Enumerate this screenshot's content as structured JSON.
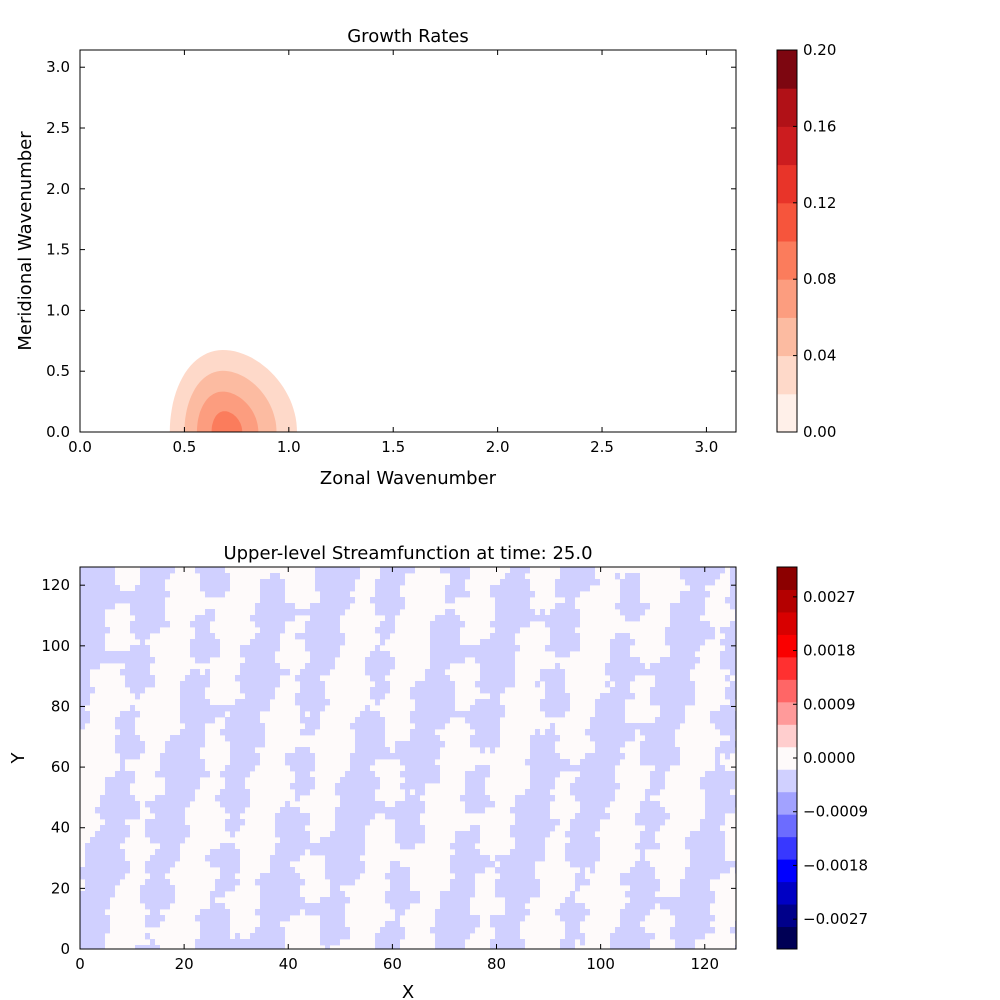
{
  "chart_data": [
    {
      "type": "heatmap",
      "title": "Growth Rates",
      "xlabel": "Zonal Wavenumber",
      "ylabel": "Meridional Wavenumber",
      "xlim": [
        0,
        3.14159
      ],
      "ylim": [
        0,
        3.14159
      ],
      "xticks": [
        "0.0",
        "0.5",
        "1.0",
        "1.5",
        "2.0",
        "2.5",
        "3.0"
      ],
      "yticks": [
        "0.0",
        "0.5",
        "1.0",
        "1.5",
        "2.0",
        "2.5",
        "3.0"
      ],
      "colorbar": {
        "range": [
          0,
          0.2
        ],
        "tick_labels": [
          "0.00",
          "0.04",
          "0.08",
          "0.12",
          "0.16",
          "0.20"
        ],
        "levels": [
          0,
          0.02,
          0.04,
          0.06,
          0.08,
          0.1,
          0.12,
          0.14,
          0.16,
          0.18,
          0.2
        ],
        "colors": [
          "#fff0e9",
          "#fed9c9",
          "#fcbba1",
          "#fc9d7f",
          "#fb7c5c",
          "#f6553c",
          "#e83429",
          "#cc1c1f",
          "#b11117",
          "#7d0610"
        ]
      },
      "contours": [
        {
          "level": 0.02,
          "center": [
            0.72,
            0.0
          ],
          "rx": 0.29,
          "ry": 0.67
        },
        {
          "level": 0.04,
          "center": [
            0.71,
            0.0
          ],
          "rx": 0.21,
          "ry": 0.5
        },
        {
          "level": 0.06,
          "center": [
            0.7,
            0.0
          ],
          "rx": 0.14,
          "ry": 0.33
        },
        {
          "level": 0.08,
          "center": [
            0.7,
            0.0
          ],
          "rx": 0.07,
          "ry": 0.17
        }
      ]
    },
    {
      "type": "heatmap",
      "title": "Upper-level Streamfunction at time: 25.0",
      "xlabel": "X",
      "ylabel": "Y",
      "xlim": [
        0,
        126
      ],
      "ylim": [
        0,
        126
      ],
      "xticks": [
        "0",
        "20",
        "40",
        "60",
        "80",
        "100",
        "120"
      ],
      "yticks": [
        "0",
        "20",
        "40",
        "60",
        "80",
        "100",
        "120"
      ],
      "colorbar": {
        "range": [
          -0.0032,
          0.0032
        ],
        "tick_labels": [
          "0.0027",
          "0.0018",
          "0.0009",
          "0.0000",
          "−0.0009",
          "−0.0018",
          "−0.0027"
        ],
        "tick_values": [
          0.0027,
          0.0018,
          0.0009,
          0.0,
          -0.0009,
          -0.0018,
          -0.0027
        ],
        "colors": [
          "#000055",
          "#00008a",
          "#0000c4",
          "#0000ff",
          "#3838ff",
          "#6c6cff",
          "#a2a2ff",
          "#d0d0ff",
          "#fefafa",
          "#ffcece",
          "#ff9a9a",
          "#ff6666",
          "#ff3030",
          "#fa0000",
          "#d80000",
          "#b40000",
          "#8c0000"
        ]
      },
      "field": {
        "values_shown": [
          "-0.0001 to 0.0000 (light blue)",
          "0.0000 to 0.0002 (near white)"
        ],
        "pattern": "vertical streaks, slightly tilted"
      }
    }
  ]
}
